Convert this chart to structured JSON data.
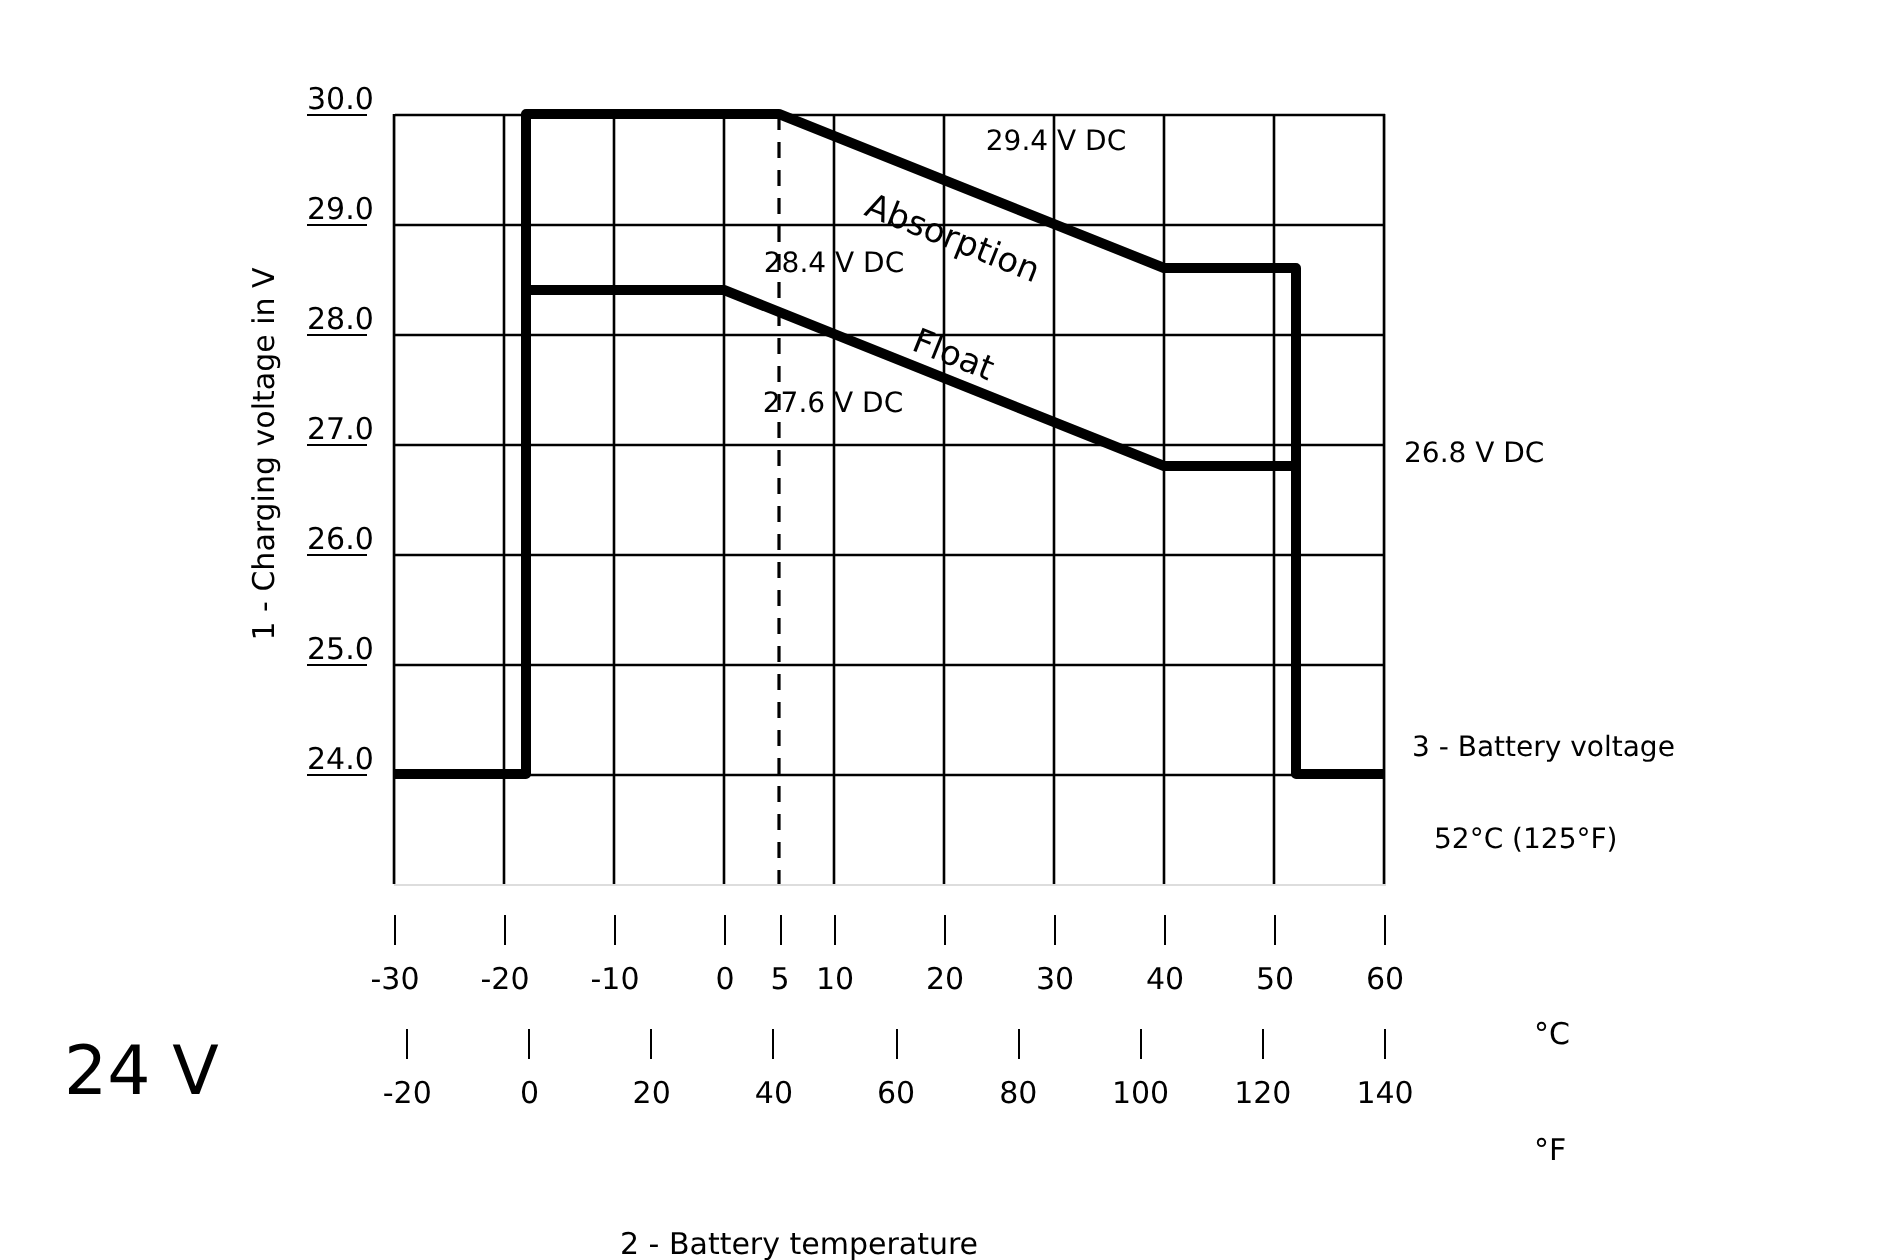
{
  "chart_data": {
    "type": "line",
    "ylabel": "1 - Charging voltage in V",
    "xlabel": "2 - Battery temperature",
    "xlim": [
      -30,
      60
    ],
    "xticks": [
      -30,
      -20,
      -10,
      0,
      5,
      10,
      20,
      30,
      40,
      50,
      60
    ],
    "x2lim": [
      -22,
      140
    ],
    "x2ticks": [
      -20,
      0,
      20,
      40,
      60,
      80,
      100,
      120,
      140
    ],
    "ylim": [
      23,
      30
    ],
    "yticks": [
      {
        "value": 24,
        "label": "24.0"
      },
      {
        "value": 25,
        "label": "25.0"
      },
      {
        "value": 26,
        "label": "26.0"
      },
      {
        "value": 27,
        "label": "27.0"
      },
      {
        "value": 28,
        "label": "28.0"
      },
      {
        "value": 29,
        "label": "29.0"
      },
      {
        "value": 30,
        "label": "30.0"
      }
    ],
    "grid": true,
    "line_style": "solid",
    "marker": "none",
    "series": [
      {
        "name": "Absorption",
        "color": "#000000",
        "x": [
          -30,
          -18,
          -18,
          5,
          40,
          52,
          52,
          60
        ],
        "values": [
          24,
          24,
          30,
          30,
          28.6,
          28.6,
          24,
          24
        ]
      },
      {
        "name": "Float",
        "color": "#000000",
        "x": [
          -18,
          0,
          40,
          52
        ],
        "values": [
          28.4,
          28.4,
          26.8,
          26.8
        ]
      }
    ],
    "ref_lines": [
      {
        "axis": "x",
        "value": 5,
        "line_style": "dashed",
        "color": "#000000"
      }
    ],
    "annotations": [
      {
        "text": "28.4 V DC",
        "x": 0,
        "y": 28.4
      },
      {
        "text": "27.6 V DC",
        "x": 19,
        "y": 27.6
      },
      {
        "text": "29.4 V DC",
        "x": 22,
        "y": 29.4
      },
      "26.8 V DC",
      {
        "text": "3 - Battery voltage",
        "x": 60,
        "y": 24
      },
      "52°C (125°F)",
      "24 V",
      "°C",
      "°F"
    ]
  }
}
